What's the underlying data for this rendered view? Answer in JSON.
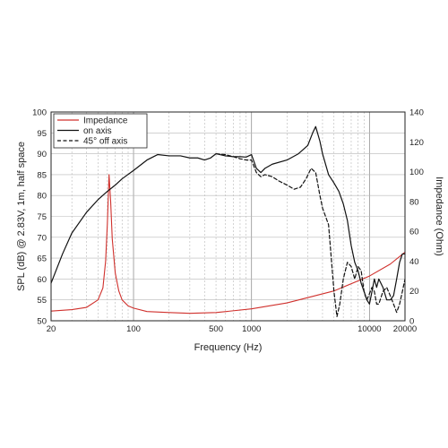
{
  "chart_data": {
    "type": "line",
    "xlabel": "Frequency (Hz)",
    "ylabel_left": "SPL (dB) @ 2.83V, 1m, half space",
    "ylabel_right": "Impedance (Ohm)",
    "x_scale": "log",
    "xlim": [
      20,
      20000
    ],
    "ylim_left": [
      50,
      100
    ],
    "ylim_right": [
      0,
      140
    ],
    "x_tick_labels": [
      "20",
      "100",
      "500",
      "1000",
      "10000",
      "20000"
    ],
    "y_left_ticks": [
      "50",
      "55",
      "60",
      "65",
      "70",
      "75",
      "80",
      "85",
      "90",
      "95",
      "100"
    ],
    "y_right_ticks": [
      "0",
      "20",
      "40",
      "60",
      "80",
      "100",
      "120",
      "140"
    ],
    "grid": true,
    "legend_position": "top-left",
    "colors": {
      "impedance": "#d0312d",
      "on_axis": "#111111",
      "off_axis": "#111111",
      "grid": "#b8b8b8"
    },
    "series": [
      {
        "name": "Impedance",
        "axis": "right",
        "style": "solid",
        "x": [
          20,
          30,
          40,
          50,
          55,
          58,
          60,
          62,
          64,
          66,
          70,
          75,
          80,
          90,
          100,
          130,
          200,
          300,
          500,
          1000,
          2000,
          5000,
          10000,
          15000,
          20000
        ],
        "y": [
          6.5,
          7.5,
          9,
          14,
          22,
          40,
          65,
          98,
          80,
          55,
          32,
          20,
          14,
          10,
          8.5,
          6.2,
          5.5,
          5,
          5.5,
          8,
          12,
          20,
          30,
          38,
          46
        ]
      },
      {
        "name": "on axis",
        "axis": "left",
        "style": "solid",
        "x": [
          20,
          25,
          30,
          40,
          50,
          60,
          70,
          80,
          100,
          130,
          160,
          200,
          250,
          300,
          350,
          400,
          450,
          500,
          600,
          700,
          800,
          900,
          1000,
          1100,
          1200,
          1300,
          1500,
          2000,
          2500,
          3000,
          3300,
          3500,
          3800,
          4000,
          4500,
          5000,
          5500,
          6000,
          6500,
          7000,
          7500,
          8000,
          8500,
          9000,
          9500,
          10000,
          10500,
          11000,
          11500,
          12000,
          13000,
          14000,
          15000,
          16000,
          17000,
          18000,
          19000,
          20000
        ],
        "y": [
          59,
          66,
          71,
          76,
          79,
          81,
          82.5,
          84,
          86,
          88.5,
          89.8,
          89.5,
          89.5,
          89,
          89,
          88.5,
          89,
          90,
          89.5,
          89.3,
          89.3,
          89.2,
          89.8,
          86.5,
          85.5,
          86.5,
          87.5,
          88.5,
          90,
          92,
          95,
          96.5,
          93,
          90,
          85,
          83,
          81,
          78,
          74,
          68,
          64,
          62,
          59,
          57,
          55,
          54,
          57,
          60,
          58,
          60,
          58,
          55,
          55,
          56,
          60,
          64,
          66,
          66
        ]
      },
      {
        "name": "45° off axis",
        "axis": "left",
        "style": "dashed",
        "x": [
          500,
          600,
          700,
          800,
          900,
          1000,
          1100,
          1200,
          1300,
          1500,
          1700,
          2000,
          2300,
          2600,
          2900,
          3200,
          3500,
          3800,
          4000,
          4500,
          5000,
          5300,
          5600,
          6000,
          6500,
          7000,
          7500,
          8000,
          8500,
          9000,
          9500,
          10000,
          10500,
          11000,
          11500,
          12000,
          13000,
          14000,
          15000,
          16000,
          17000,
          18000,
          19000,
          20000
        ],
        "y": [
          90,
          89.8,
          89.3,
          88.8,
          88.5,
          88.5,
          85.5,
          84.5,
          85,
          84.5,
          83.5,
          82.5,
          81.5,
          82,
          84,
          86.5,
          85.5,
          80,
          77,
          73,
          57,
          51,
          54,
          60,
          64,
          63,
          60,
          63,
          62,
          57,
          55,
          56.5,
          58,
          57,
          54,
          54,
          57,
          58,
          56,
          54,
          52,
          54,
          57,
          60
        ]
      }
    ]
  }
}
